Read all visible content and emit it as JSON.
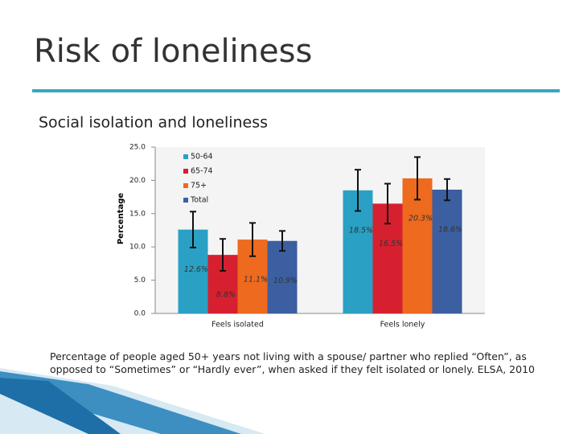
{
  "title": "Risk of loneliness",
  "chart_data": {
    "type": "bar",
    "title": "Social isolation and loneliness",
    "y_label": "Percentage",
    "categories": [
      "Feels isolated",
      "Feels lonely"
    ],
    "series": [
      {
        "name": "50-64",
        "color": "#2aa0c4",
        "values": [
          12.6,
          18.5
        ],
        "errors": [
          2.7,
          3.1
        ],
        "value_labels": [
          "12.6%",
          "18.5%"
        ]
      },
      {
        "name": "65-74",
        "color": "#d62030",
        "values": [
          8.8,
          16.5
        ],
        "errors": [
          2.4,
          3.0
        ],
        "value_labels": [
          "8.8%",
          "16.5%"
        ]
      },
      {
        "name": "75+",
        "color": "#ee6a1e",
        "values": [
          11.1,
          20.3
        ],
        "errors": [
          2.5,
          3.2
        ],
        "value_labels": [
          "11.1%",
          "20.3%"
        ]
      },
      {
        "name": "Total",
        "color": "#3b5fa0",
        "values": [
          10.9,
          18.6
        ],
        "errors": [
          1.5,
          1.6
        ],
        "value_labels": [
          "10.9%",
          "18.6%"
        ]
      }
    ],
    "ylim": [
      0,
      25
    ],
    "yticks": [
      {
        "value": 0,
        "label": "0.0"
      },
      {
        "value": 5,
        "label": "5.0"
      },
      {
        "value": 10,
        "label": "10.0"
      },
      {
        "value": 15,
        "label": "15.0"
      },
      {
        "value": 20,
        "label": "20.0"
      },
      {
        "value": 25,
        "label": "25.0"
      }
    ]
  },
  "caption": "Percentage of people aged 50+ years not living with a spouse/ partner who replied “Often”, as opposed to “Sometimes” or “Hardly ever”, when asked if they felt isolated or lonely. ELSA, 2010"
}
